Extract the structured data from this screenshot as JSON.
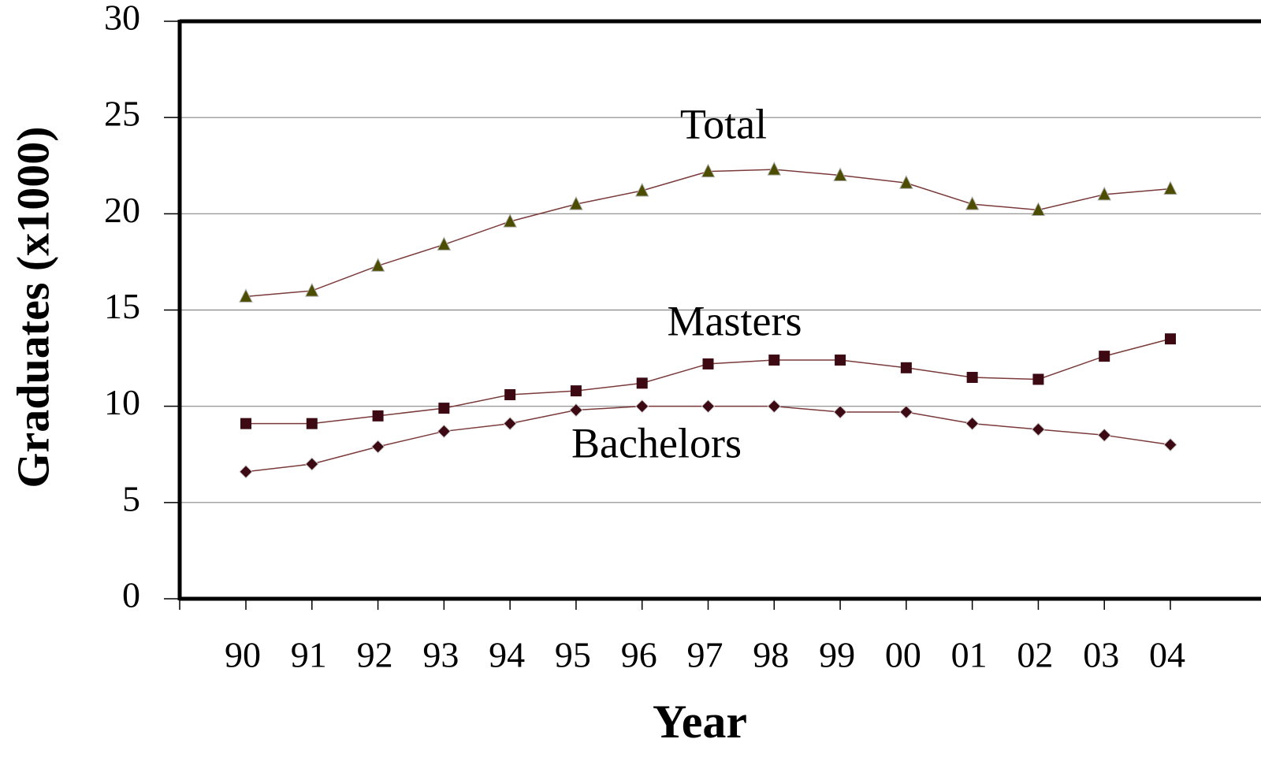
{
  "chart_data": {
    "type": "line",
    "xlabel": "Year",
    "ylabel": "Graduates (x1000)",
    "categories": [
      "90",
      "91",
      "92",
      "93",
      "94",
      "95",
      "96",
      "97",
      "98",
      "99",
      "00",
      "01",
      "02",
      "03",
      "04"
    ],
    "series": [
      {
        "name": "Total",
        "color": "#4d4d00",
        "line_color": "#7a3a3a",
        "marker": "triangle",
        "values": [
          15.7,
          16.0,
          17.3,
          18.4,
          19.6,
          20.5,
          21.2,
          22.2,
          22.3,
          22.0,
          21.6,
          20.5,
          20.2,
          21.0,
          21.3
        ]
      },
      {
        "name": "Masters",
        "color": "#3d0a14",
        "line_color": "#7a3a3a",
        "marker": "square",
        "values": [
          9.1,
          9.1,
          9.5,
          9.9,
          10.6,
          10.8,
          11.2,
          12.2,
          12.4,
          12.4,
          12.0,
          11.5,
          11.4,
          12.6,
          13.5
        ]
      },
      {
        "name": "Bachelors",
        "color": "#3d0a14",
        "line_color": "#7a3a3a",
        "marker": "diamond",
        "values": [
          6.6,
          7.0,
          7.9,
          8.7,
          9.1,
          9.8,
          10.0,
          10.0,
          10.0,
          9.7,
          9.7,
          9.1,
          8.8,
          8.5,
          8.0
        ]
      }
    ],
    "ylim": [
      0,
      30
    ],
    "yticks": [
      0,
      5,
      10,
      15,
      20,
      25,
      30
    ],
    "grid": true
  }
}
